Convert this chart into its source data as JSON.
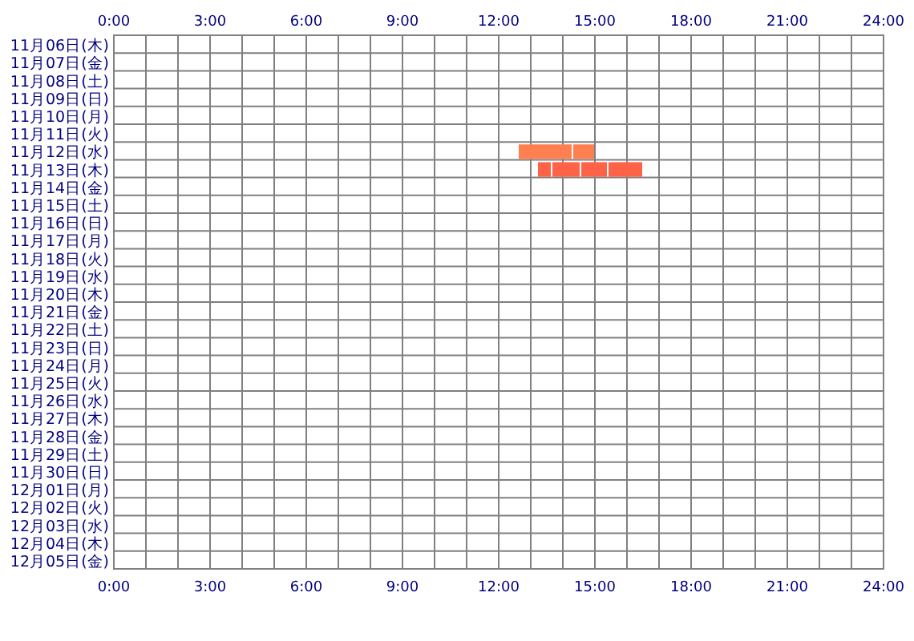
{
  "chart_data": {
    "type": "bar",
    "orientation": "horizontal",
    "grid": true,
    "categories": [
      "11月06日(木)",
      "11月07日(金)",
      "11月08日(土)",
      "11月09日(日)",
      "11月10日(月)",
      "11月11日(火)",
      "11月12日(水)",
      "11月13日(木)",
      "11月14日(金)",
      "11月15日(土)",
      "11月16日(日)",
      "11月17日(月)",
      "11月18日(火)",
      "11月19日(水)",
      "11月20日(木)",
      "11月21日(金)",
      "11月22日(土)",
      "11月23日(日)",
      "11月24日(月)",
      "11月25日(火)",
      "11月26日(水)",
      "11月27日(木)",
      "11月28日(金)",
      "11月29日(土)",
      "11月30日(日)",
      "12月01日(月)",
      "12月02日(火)",
      "12月03日(水)",
      "12月04日(木)",
      "12月05日(金)"
    ],
    "series": [
      {
        "base": [
          null,
          null,
          null,
          null,
          null,
          null,
          12.6,
          13.2,
          null,
          null,
          null,
          null,
          null,
          null,
          null,
          null,
          null,
          null,
          null,
          null,
          null,
          null,
          null,
          null,
          null,
          null,
          null,
          null,
          null,
          null
        ],
        "values": [
          null,
          null,
          null,
          null,
          null,
          null,
          1.7,
          0.45,
          null,
          null,
          null,
          null,
          null,
          null,
          null,
          null,
          null,
          null,
          null,
          null,
          null,
          null,
          null,
          null,
          null,
          null,
          null,
          null,
          null,
          null
        ],
        "colors": [
          null,
          null,
          null,
          null,
          null,
          null,
          "#ff7f50",
          "#ff6347",
          null,
          null,
          null,
          null,
          null,
          null,
          null,
          null,
          null,
          null,
          null,
          null,
          null,
          null,
          null,
          null,
          null,
          null,
          null,
          null,
          null,
          null
        ]
      },
      {
        "base": [
          null,
          null,
          null,
          null,
          null,
          null,
          14.3,
          13.65,
          null,
          null,
          null,
          null,
          null,
          null,
          null,
          null,
          null,
          null,
          null,
          null,
          null,
          null,
          null,
          null,
          null,
          null,
          null,
          null,
          null,
          null
        ],
        "values": [
          null,
          null,
          null,
          null,
          null,
          null,
          0.7,
          0.9,
          null,
          null,
          null,
          null,
          null,
          null,
          null,
          null,
          null,
          null,
          null,
          null,
          null,
          null,
          null,
          null,
          null,
          null,
          null,
          null,
          null,
          null
        ],
        "colors": [
          null,
          null,
          null,
          null,
          null,
          null,
          "#ff7f50",
          "#ff6347",
          null,
          null,
          null,
          null,
          null,
          null,
          null,
          null,
          null,
          null,
          null,
          null,
          null,
          null,
          null,
          null,
          null,
          null,
          null,
          null,
          null,
          null
        ]
      },
      {
        "base": [
          null,
          null,
          null,
          null,
          null,
          null,
          null,
          14.55,
          null,
          null,
          null,
          null,
          null,
          null,
          null,
          null,
          null,
          null,
          null,
          null,
          null,
          null,
          null,
          null,
          null,
          null,
          null,
          null,
          null,
          null
        ],
        "values": [
          null,
          null,
          null,
          null,
          null,
          null,
          null,
          0.85,
          null,
          null,
          null,
          null,
          null,
          null,
          null,
          null,
          null,
          null,
          null,
          null,
          null,
          null,
          null,
          null,
          null,
          null,
          null,
          null,
          null,
          null
        ],
        "colors": [
          null,
          null,
          null,
          null,
          null,
          null,
          null,
          "#ff6347",
          null,
          null,
          null,
          null,
          null,
          null,
          null,
          null,
          null,
          null,
          null,
          null,
          null,
          null,
          null,
          null,
          null,
          null,
          null,
          null,
          null,
          null
        ]
      },
      {
        "base": [
          null,
          null,
          null,
          null,
          null,
          null,
          null,
          15.4,
          null,
          null,
          null,
          null,
          null,
          null,
          null,
          null,
          null,
          null,
          null,
          null,
          null,
          null,
          null,
          null,
          null,
          null,
          null,
          null,
          null,
          null
        ],
        "values": [
          null,
          null,
          null,
          null,
          null,
          null,
          null,
          1.1,
          null,
          null,
          null,
          null,
          null,
          null,
          null,
          null,
          null,
          null,
          null,
          null,
          null,
          null,
          null,
          null,
          null,
          null,
          null,
          null,
          null,
          null
        ],
        "colors": [
          null,
          null,
          null,
          null,
          null,
          null,
          null,
          "#ff6347",
          null,
          null,
          null,
          null,
          null,
          null,
          null,
          null,
          null,
          null,
          null,
          null,
          null,
          null,
          null,
          null,
          null,
          null,
          null,
          null,
          null,
          null
        ]
      }
    ],
    "xlim": [
      0,
      24
    ],
    "xticks": [
      {
        "value": 0,
        "label": "0:00"
      },
      {
        "value": 1,
        "label": null
      },
      {
        "value": 2,
        "label": null
      },
      {
        "value": 3,
        "label": "3:00"
      },
      {
        "value": 4,
        "label": null
      },
      {
        "value": 5,
        "label": null
      },
      {
        "value": 6,
        "label": "6:00"
      },
      {
        "value": 7,
        "label": null
      },
      {
        "value": 8,
        "label": null
      },
      {
        "value": 9,
        "label": "9:00"
      },
      {
        "value": 10,
        "label": null
      },
      {
        "value": 11,
        "label": null
      },
      {
        "value": 12,
        "label": "12:00"
      },
      {
        "value": 13,
        "label": null
      },
      {
        "value": 14,
        "label": null
      },
      {
        "value": 15,
        "label": "15:00"
      },
      {
        "value": 16,
        "label": null
      },
      {
        "value": 17,
        "label": null
      },
      {
        "value": 18,
        "label": "18:00"
      },
      {
        "value": 19,
        "label": null
      },
      {
        "value": 20,
        "label": null
      },
      {
        "value": 21,
        "label": "21:00"
      },
      {
        "value": 22,
        "label": null
      },
      {
        "value": 23,
        "label": null
      },
      {
        "value": 24,
        "label": "24:00"
      }
    ],
    "x2lim": [
      0,
      24
    ],
    "x2ticks": [
      {
        "value": 0,
        "label": "0:00"
      },
      {
        "value": 1,
        "label": null
      },
      {
        "value": 2,
        "label": null
      },
      {
        "value": 3,
        "label": "3:00"
      },
      {
        "value": 4,
        "label": null
      },
      {
        "value": 5,
        "label": null
      },
      {
        "value": 6,
        "label": "6:00"
      },
      {
        "value": 7,
        "label": null
      },
      {
        "value": 8,
        "label": null
      },
      {
        "value": 9,
        "label": "9:00"
      },
      {
        "value": 10,
        "label": null
      },
      {
        "value": 11,
        "label": null
      },
      {
        "value": 12,
        "label": "12:00"
      },
      {
        "value": 13,
        "label": null
      },
      {
        "value": 14,
        "label": null
      },
      {
        "value": 15,
        "label": "15:00"
      },
      {
        "value": 16,
        "label": null
      },
      {
        "value": 17,
        "label": null
      },
      {
        "value": 18,
        "label": "18:00"
      },
      {
        "value": 19,
        "label": null
      },
      {
        "value": 20,
        "label": null
      },
      {
        "value": 21,
        "label": "21:00"
      },
      {
        "value": 22,
        "label": null
      },
      {
        "value": 23,
        "label": null
      },
      {
        "value": 24,
        "label": "24:00"
      }
    ]
  }
}
